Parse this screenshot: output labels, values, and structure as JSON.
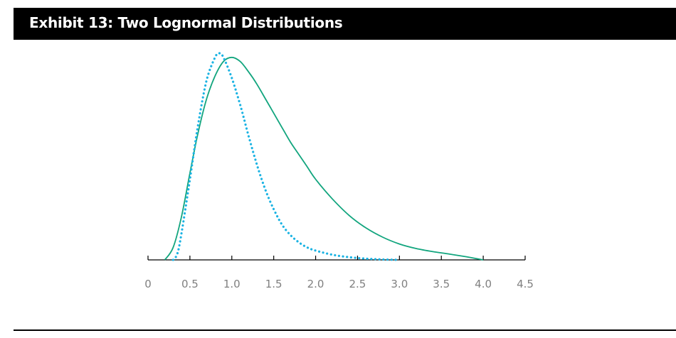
{
  "title": "Exhibit 13: Two Lognormal Distributions",
  "colors": {
    "solid": "#12a57e",
    "dotted": "#1bb3e3",
    "axis": "#000000",
    "tick_label": "#808080"
  },
  "chart_data": {
    "type": "line",
    "title": "Exhibit 13: Two Lognormal Distributions",
    "xlabel": "",
    "ylabel": "",
    "xlim": [
      0,
      4.5
    ],
    "ylim": [
      0,
      1.0
    ],
    "x_ticks": [
      0,
      0.5,
      1.0,
      1.5,
      2.0,
      2.5,
      3.0,
      3.5,
      4.0,
      4.5
    ],
    "x_tick_labels": [
      "0",
      "0.5",
      "1.0",
      "1.5",
      "2.0",
      "2.5",
      "3.0",
      "3.5",
      "4.0",
      "4.5"
    ],
    "grid": false,
    "legend": "none",
    "series": [
      {
        "style": "solid",
        "color": "#12a57e",
        "x": [
          0.2,
          0.3,
          0.4,
          0.5,
          0.6,
          0.7,
          0.8,
          0.9,
          1.0,
          1.1,
          1.2,
          1.3,
          1.4,
          1.5,
          1.6,
          1.7,
          1.8,
          1.9,
          2.0,
          2.2,
          2.4,
          2.6,
          2.8,
          3.0,
          3.2,
          3.4,
          3.6,
          3.8,
          4.0
        ],
        "y": [
          0.0,
          0.06,
          0.21,
          0.42,
          0.62,
          0.78,
          0.89,
          0.96,
          0.98,
          0.96,
          0.91,
          0.85,
          0.78,
          0.71,
          0.64,
          0.57,
          0.51,
          0.45,
          0.39,
          0.295,
          0.215,
          0.155,
          0.11,
          0.077,
          0.055,
          0.04,
          0.028,
          0.015,
          0.0
        ]
      },
      {
        "style": "dotted",
        "color": "#1bb3e3",
        "x": [
          0.3,
          0.35,
          0.4,
          0.5,
          0.6,
          0.7,
          0.8,
          0.85,
          0.9,
          1.0,
          1.1,
          1.2,
          1.3,
          1.4,
          1.5,
          1.6,
          1.7,
          1.8,
          1.9,
          2.0,
          2.2,
          2.4,
          2.6,
          2.8,
          3.0
        ],
        "y": [
          0.0,
          0.03,
          0.13,
          0.39,
          0.66,
          0.87,
          0.98,
          1.0,
          0.98,
          0.88,
          0.75,
          0.6,
          0.46,
          0.34,
          0.245,
          0.17,
          0.12,
          0.085,
          0.06,
          0.045,
          0.025,
          0.013,
          0.006,
          0.002,
          0.0
        ]
      }
    ]
  }
}
